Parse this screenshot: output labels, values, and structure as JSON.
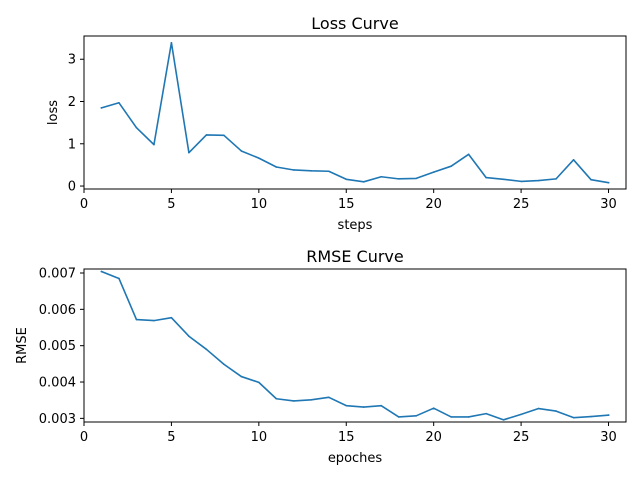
{
  "chart_data": [
    {
      "type": "line",
      "title": "Loss Curve",
      "xlabel": "steps",
      "ylabel": "loss",
      "xlim": [
        0,
        31
      ],
      "ylim": [
        -0.07,
        3.55
      ],
      "xticks": [
        0,
        5,
        10,
        15,
        20,
        25,
        30
      ],
      "yticks": [
        0,
        1,
        2,
        3
      ],
      "grid": false,
      "color": "#1f77b4",
      "series": [
        {
          "x": [
            1,
            2,
            3,
            4,
            5,
            6,
            7,
            8,
            9,
            10,
            11,
            12,
            13,
            14,
            15,
            16,
            17,
            18,
            19,
            20,
            21,
            22,
            23,
            24,
            25,
            26,
            27,
            28,
            29,
            30
          ],
          "values": [
            1.85,
            1.97,
            1.38,
            0.98,
            3.39,
            0.79,
            1.21,
            1.2,
            0.83,
            0.66,
            0.45,
            0.38,
            0.36,
            0.35,
            0.16,
            0.1,
            0.22,
            0.17,
            0.18,
            0.33,
            0.47,
            0.75,
            0.2,
            0.16,
            0.11,
            0.13,
            0.17,
            0.62,
            0.15,
            0.08
          ]
        }
      ]
    },
    {
      "type": "line",
      "title": "RMSE Curve",
      "xlabel": "epoches",
      "ylabel": "RMSE",
      "xlim": [
        0,
        31
      ],
      "ylim": [
        0.0029,
        0.00711
      ],
      "xticks": [
        0,
        5,
        10,
        15,
        20,
        25,
        30
      ],
      "yticks": [
        0.003,
        0.004,
        0.005,
        0.006,
        0.007
      ],
      "ytick_labels": [
        "0.003",
        "0.004",
        "0.005",
        "0.006",
        "0.007"
      ],
      "grid": false,
      "color": "#1f77b4",
      "series": [
        {
          "x": [
            1,
            2,
            3,
            4,
            5,
            6,
            7,
            8,
            9,
            10,
            11,
            12,
            13,
            14,
            15,
            16,
            17,
            18,
            19,
            20,
            21,
            22,
            23,
            24,
            25,
            26,
            27,
            28,
            29,
            30
          ],
          "values": [
            0.00704,
            0.00685,
            0.00572,
            0.00569,
            0.00577,
            0.00526,
            0.0049,
            0.00449,
            0.00415,
            0.00399,
            0.00354,
            0.00348,
            0.00351,
            0.00358,
            0.00335,
            0.00331,
            0.00335,
            0.00304,
            0.00307,
            0.00328,
            0.00304,
            0.00304,
            0.00313,
            0.00296,
            0.00311,
            0.00327,
            0.0032,
            0.00302,
            0.00305,
            0.00309
          ]
        }
      ]
    }
  ]
}
